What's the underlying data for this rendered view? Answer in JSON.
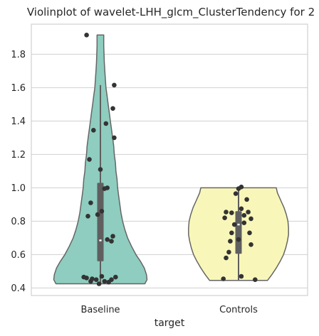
{
  "chart_data": {
    "type": "violin",
    "title": "Violinplot of wavelet-LHH_glcm_ClusterTendency for 2",
    "xlabel": "target",
    "ylabel": "",
    "categories": [
      "Baseline",
      "Controls"
    ],
    "ylim": [
      0.355,
      1.98
    ],
    "yticks": [
      0.4,
      0.6,
      0.8,
      1.0,
      1.2,
      1.4,
      1.6,
      1.8
    ],
    "ytick_labels": [
      "0.4",
      "0.6",
      "0.8",
      "1.0",
      "1.2",
      "1.4",
      "1.6",
      "1.8"
    ],
    "grid": true,
    "colors": {
      "Baseline": "#8ecdbf",
      "Controls": "#f8f7b9",
      "points": "#333333",
      "outline": "#666666",
      "grid": "#d0d0d0"
    },
    "series": [
      {
        "category": "Baseline",
        "range": [
          0.425,
          1.915
        ],
        "profile": [
          [
            0.425,
            0.8
          ],
          [
            0.45,
            0.84
          ],
          [
            0.48,
            0.83
          ],
          [
            0.52,
            0.79
          ],
          [
            0.56,
            0.72
          ],
          [
            0.6,
            0.64
          ],
          [
            0.65,
            0.56
          ],
          [
            0.7,
            0.49
          ],
          [
            0.75,
            0.44
          ],
          [
            0.8,
            0.4
          ],
          [
            0.85,
            0.37
          ],
          [
            0.9,
            0.35
          ],
          [
            0.95,
            0.33
          ],
          [
            1.0,
            0.31
          ],
          [
            1.05,
            0.3
          ],
          [
            1.1,
            0.28
          ],
          [
            1.15,
            0.27
          ],
          [
            1.2,
            0.25
          ],
          [
            1.25,
            0.24
          ],
          [
            1.3,
            0.22
          ],
          [
            1.35,
            0.2
          ],
          [
            1.4,
            0.18
          ],
          [
            1.45,
            0.16
          ],
          [
            1.5,
            0.14
          ],
          [
            1.55,
            0.12
          ],
          [
            1.6,
            0.1
          ],
          [
            1.65,
            0.09
          ],
          [
            1.7,
            0.08
          ],
          [
            1.75,
            0.07
          ],
          [
            1.8,
            0.065
          ],
          [
            1.85,
            0.06
          ],
          [
            1.915,
            0.06
          ]
        ],
        "q1": 0.56,
        "median": 0.685,
        "q3": 1.03,
        "whisker": [
          0.43,
          1.615
        ],
        "points": [
          [
            -0.1,
            1.915
          ],
          [
            0.1,
            1.615
          ],
          [
            0.09,
            1.475
          ],
          [
            0.04,
            1.385
          ],
          [
            -0.05,
            1.345
          ],
          [
            0.1,
            1.3
          ],
          [
            -0.08,
            1.17
          ],
          [
            0.0,
            1.11
          ],
          [
            0.05,
            1.0
          ],
          [
            0.03,
            0.995
          ],
          [
            -0.07,
            0.91
          ],
          [
            0.01,
            0.86
          ],
          [
            -0.09,
            0.83
          ],
          [
            -0.02,
            0.84
          ],
          [
            0.09,
            0.71
          ],
          [
            0.05,
            0.69
          ],
          [
            0.08,
            0.68
          ],
          [
            -0.12,
            0.465
          ],
          [
            -0.1,
            0.46
          ],
          [
            0.01,
            0.47
          ],
          [
            0.11,
            0.465
          ],
          [
            -0.06,
            0.455
          ],
          [
            -0.03,
            0.45
          ],
          [
            0.08,
            0.45
          ],
          [
            -0.07,
            0.44
          ],
          [
            0.03,
            0.44
          ],
          [
            0.06,
            0.435
          ],
          [
            -0.01,
            0.425
          ]
        ]
      },
      {
        "category": "Controls",
        "range": [
          0.445,
          1.0
        ],
        "profile": [
          [
            0.445,
            0.52
          ],
          [
            0.48,
            0.6
          ],
          [
            0.52,
            0.68
          ],
          [
            0.56,
            0.75
          ],
          [
            0.6,
            0.81
          ],
          [
            0.64,
            0.85
          ],
          [
            0.68,
            0.88
          ],
          [
            0.72,
            0.9
          ],
          [
            0.76,
            0.9
          ],
          [
            0.8,
            0.89
          ],
          [
            0.84,
            0.86
          ],
          [
            0.88,
            0.82
          ],
          [
            0.91,
            0.78
          ],
          [
            0.94,
            0.74
          ],
          [
            0.97,
            0.7
          ],
          [
            1.0,
            0.68
          ]
        ],
        "q1": 0.605,
        "median": 0.78,
        "q3": 0.86,
        "whisker": [
          0.445,
          1.0
        ],
        "points": [
          [
            0.02,
            1.005
          ],
          [
            0.0,
            0.995
          ],
          [
            -0.02,
            0.965
          ],
          [
            0.06,
            0.93
          ],
          [
            0.02,
            0.875
          ],
          [
            0.07,
            0.855
          ],
          [
            -0.09,
            0.855
          ],
          [
            -0.05,
            0.85
          ],
          [
            0.04,
            0.835
          ],
          [
            -0.1,
            0.82
          ],
          [
            0.09,
            0.815
          ],
          [
            0.04,
            0.79
          ],
          [
            -0.03,
            0.78
          ],
          [
            -0.05,
            0.73
          ],
          [
            0.08,
            0.73
          ],
          [
            0.0,
            0.69
          ],
          [
            -0.06,
            0.68
          ],
          [
            0.09,
            0.66
          ],
          [
            -0.07,
            0.615
          ],
          [
            -0.09,
            0.58
          ],
          [
            0.02,
            0.47
          ],
          [
            -0.11,
            0.455
          ],
          [
            0.12,
            0.45
          ]
        ]
      }
    ]
  }
}
